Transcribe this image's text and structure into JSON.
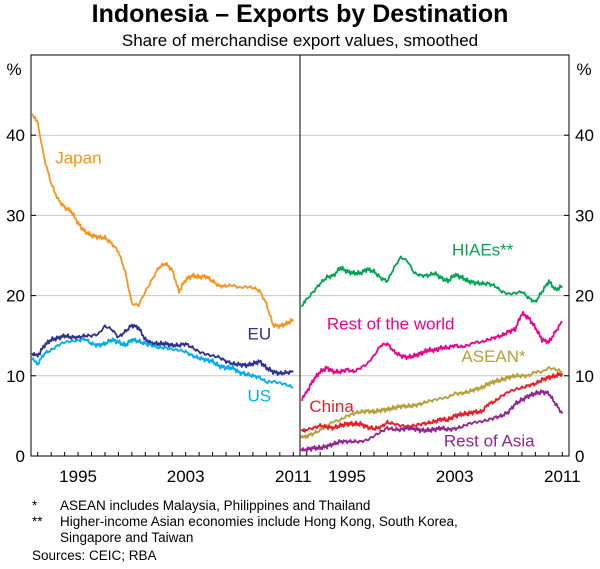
{
  "chart_data": {
    "type": "line",
    "title": "Indonesia – Exports by Destination",
    "subtitle": "Share of merchandise export values, smoothed",
    "ylabel": "%",
    "ylim": [
      0,
      50
    ],
    "yticks": [
      0,
      10,
      20,
      30,
      40
    ],
    "xlim": [
      1991.5,
      2011.5
    ],
    "xticks": [
      1995,
      2003,
      2011
    ],
    "grid": "horizontal",
    "panels": [
      {
        "name": "left",
        "series": [
          {
            "name": "Japan",
            "color": "#f7941d",
            "x": [
              1991.6,
              1992.0,
              1992.5,
              1993.0,
              1993.5,
              1994.0,
              1994.5,
              1995.0,
              1995.5,
              1996.0,
              1996.5,
              1997.0,
              1997.5,
              1998.0,
              1998.5,
              1999.0,
              1999.5,
              2000.0,
              2000.5,
              2001.0,
              2001.5,
              2002.0,
              2002.5,
              2003.0,
              2003.5,
              2004.0,
              2004.5,
              2005.0,
              2005.5,
              2006.0,
              2006.5,
              2007.0,
              2007.5,
              2008.0,
              2008.5,
              2009.0,
              2009.5,
              2010.0,
              2010.5,
              2011.0
            ],
            "y": [
              42.5,
              41.5,
              37,
              34,
              32,
              31,
              30.5,
              29,
              28,
              27.5,
              27.3,
              27.2,
              26.5,
              25.5,
              23,
              19,
              18.8,
              20.5,
              22,
              23.5,
              24,
              23.2,
              20.5,
              22,
              22.5,
              22.3,
              22.4,
              21.8,
              21.2,
              21.2,
              21.3,
              21,
              21.1,
              21,
              20.6,
              19,
              16.3,
              16.2,
              16.5,
              17
            ]
          },
          {
            "name": "EU",
            "color": "#2e3192",
            "x": [
              1991.6,
              1992.0,
              1992.5,
              1993.0,
              1993.5,
              1994.0,
              1994.5,
              1995.0,
              1995.5,
              1996.0,
              1996.5,
              1997.0,
              1997.5,
              1998.0,
              1998.5,
              1999.0,
              1999.5,
              2000.0,
              2000.5,
              2001.0,
              2001.5,
              2002.0,
              2002.5,
              2003.0,
              2003.5,
              2004.0,
              2004.5,
              2005.0,
              2005.5,
              2006.0,
              2006.5,
              2007.0,
              2007.5,
              2008.0,
              2008.5,
              2009.0,
              2009.5,
              2010.0,
              2010.5,
              2011.0
            ],
            "y": [
              12.8,
              12.5,
              13.8,
              14.5,
              14.7,
              15,
              14.8,
              14.8,
              15,
              15,
              15.2,
              16.2,
              15.8,
              14.8,
              15.5,
              16.3,
              16,
              14.5,
              14,
              14,
              14,
              13.8,
              13.8,
              14,
              13.5,
              13,
              12.7,
              12.5,
              12.3,
              11.8,
              11.5,
              11.4,
              11.3,
              11.5,
              11.8,
              11,
              10.5,
              10.3,
              10.4,
              10.5
            ]
          },
          {
            "name": "US",
            "color": "#00aeef",
            "x": [
              1991.6,
              1992.0,
              1992.5,
              1993.0,
              1993.5,
              1994.0,
              1994.5,
              1995.0,
              1995.5,
              1996.0,
              1996.5,
              1997.0,
              1997.5,
              1998.0,
              1998.5,
              1999.0,
              1999.5,
              2000.0,
              2000.5,
              2001.0,
              2001.5,
              2002.0,
              2002.5,
              2003.0,
              2003.5,
              2004.0,
              2004.5,
              2005.0,
              2005.5,
              2006.0,
              2006.5,
              2007.0,
              2007.5,
              2008.0,
              2008.5,
              2009.0,
              2009.5,
              2010.0,
              2010.5,
              2011.0
            ],
            "y": [
              12.3,
              11.5,
              12.8,
              13.2,
              13.8,
              14.2,
              14.3,
              14.4,
              14.6,
              14,
              13.8,
              14,
              14.5,
              14.2,
              13.8,
              14.5,
              14.3,
              14,
              13.8,
              13.5,
              13.5,
              13.3,
              13.2,
              13,
              12.5,
              12.2,
              12,
              11.8,
              11.2,
              11,
              11,
              10.4,
              10.2,
              10,
              9.8,
              9.2,
              9.3,
              9.1,
              8.9,
              8.5
            ]
          }
        ],
        "annotations": [
          {
            "text": "Japan",
            "x": 1993.3,
            "y": 36.5,
            "color": "#f7941d"
          },
          {
            "text": "EU",
            "x": 2007.6,
            "y": 14.5,
            "color": "#2e3192"
          },
          {
            "text": "US",
            "x": 2007.6,
            "y": 6.8,
            "color": "#00aeef"
          }
        ]
      },
      {
        "name": "right",
        "series": [
          {
            "name": "HIAEs**",
            "color": "#00a651",
            "x": [
              1991.6,
              1992.0,
              1992.5,
              1993.0,
              1993.5,
              1994.0,
              1994.5,
              1995.0,
              1995.5,
              1996.0,
              1996.5,
              1997.0,
              1997.5,
              1998.0,
              1998.5,
              1999.0,
              1999.5,
              2000.0,
              2000.5,
              2001.0,
              2001.5,
              2002.0,
              2002.5,
              2003.0,
              2003.5,
              2004.0,
              2004.5,
              2005.0,
              2005.5,
              2006.0,
              2006.5,
              2007.0,
              2007.5,
              2008.0,
              2008.5,
              2009.0,
              2009.5,
              2010.0,
              2010.5,
              2011.0
            ],
            "y": [
              18.5,
              19.5,
              20.5,
              21.5,
              22.3,
              22.5,
              23.5,
              23,
              22.8,
              22.8,
              23.3,
              23,
              22.2,
              21.8,
              23.5,
              24.8,
              24.3,
              22.8,
              22.5,
              22.5,
              22.8,
              22.2,
              21.8,
              22.6,
              22.3,
              21.8,
              21.6,
              21.5,
              21.5,
              21.2,
              20.5,
              20.2,
              20.3,
              20.5,
              19.7,
              19.2,
              20.5,
              21.8,
              20.7,
              21.2
            ]
          },
          {
            "name": "Rest of the world",
            "color": "#ec008c",
            "x": [
              1991.6,
              1992.0,
              1992.5,
              1993.0,
              1993.5,
              1994.0,
              1994.5,
              1995.0,
              1995.5,
              1996.0,
              1996.5,
              1997.0,
              1997.5,
              1998.0,
              1998.5,
              1999.0,
              1999.5,
              2000.0,
              2000.5,
              2001.0,
              2001.5,
              2002.0,
              2002.5,
              2003.0,
              2003.5,
              2004.0,
              2004.5,
              2005.0,
              2005.5,
              2006.0,
              2006.5,
              2007.0,
              2007.5,
              2008.0,
              2008.5,
              2009.0,
              2009.5,
              2010.0,
              2010.5,
              2011.0
            ],
            "y": [
              7,
              8,
              9.5,
              10.5,
              11,
              10.5,
              10.5,
              10.8,
              10.5,
              11,
              11.5,
              12.5,
              13.8,
              14,
              13,
              12.5,
              12.3,
              12.5,
              12.8,
              13.2,
              13.2,
              13.5,
              13.5,
              13.8,
              13.6,
              13.8,
              14.2,
              14.2,
              14.5,
              14.8,
              15,
              15.5,
              15.8,
              17.8,
              17.2,
              16,
              14.5,
              14.2,
              15.5,
              16.8
            ]
          },
          {
            "name": "ASEAN*",
            "color": "#b5a03c",
            "x": [
              1991.6,
              1992.0,
              1992.5,
              1993.0,
              1993.5,
              1994.0,
              1994.5,
              1995.0,
              1995.5,
              1996.0,
              1996.5,
              1997.0,
              1997.5,
              1998.0,
              1998.5,
              1999.0,
              1999.5,
              2000.0,
              2000.5,
              2001.0,
              2001.5,
              2002.0,
              2002.5,
              2003.0,
              2003.5,
              2004.0,
              2004.5,
              2005.0,
              2005.5,
              2006.0,
              2006.5,
              2007.0,
              2007.5,
              2008.0,
              2008.5,
              2009.0,
              2009.5,
              2010.0,
              2010.5,
              2011.0
            ],
            "y": [
              2.5,
              2.5,
              2.8,
              3.2,
              3.8,
              4.3,
              4.5,
              5,
              5.3,
              5.5,
              5.6,
              5.5,
              5.7,
              5.8,
              6,
              6.2,
              6.2,
              6.3,
              6.5,
              6.8,
              7,
              7.2,
              7.3,
              7.8,
              7.8,
              8,
              8.3,
              8.5,
              9,
              9.3,
              9.5,
              9.8,
              10,
              10,
              10,
              10.5,
              10.5,
              11,
              10.8,
              10.5
            ]
          },
          {
            "name": "China",
            "color": "#ed1c24",
            "x": [
              1991.6,
              1992.0,
              1992.5,
              1993.0,
              1993.5,
              1994.0,
              1994.5,
              1995.0,
              1995.5,
              1996.0,
              1996.5,
              1997.0,
              1997.5,
              1998.0,
              1998.5,
              1999.0,
              1999.5,
              2000.0,
              2000.5,
              2001.0,
              2001.5,
              2002.0,
              2002.5,
              2003.0,
              2003.5,
              2004.0,
              2004.5,
              2005.0,
              2005.5,
              2006.0,
              2006.5,
              2007.0,
              2007.5,
              2008.0,
              2008.5,
              2009.0,
              2009.5,
              2010.0,
              2010.5,
              2011.0
            ],
            "y": [
              3.3,
              3.3,
              3.5,
              3.8,
              3.6,
              3.5,
              3.8,
              4,
              4,
              4,
              3.6,
              3.4,
              3.6,
              4.2,
              4,
              3.8,
              3.7,
              3.8,
              4,
              4.1,
              4.3,
              4.6,
              4.5,
              5,
              5.2,
              5.3,
              5.5,
              5.5,
              6.5,
              6.8,
              7.5,
              8,
              8.3,
              8.5,
              8.8,
              9,
              9.5,
              9.8,
              10,
              10.3
            ]
          },
          {
            "name": "Rest of Asia",
            "color": "#92278f",
            "x": [
              1991.6,
              1992.0,
              1992.5,
              1993.0,
              1993.5,
              1994.0,
              1994.5,
              1995.0,
              1995.5,
              1996.0,
              1996.5,
              1997.0,
              1997.5,
              1998.0,
              1998.5,
              1999.0,
              1999.5,
              2000.0,
              2000.5,
              2001.0,
              2001.5,
              2002.0,
              2002.5,
              2003.0,
              2003.5,
              2004.0,
              2004.5,
              2005.0,
              2005.5,
              2006.0,
              2006.5,
              2007.0,
              2007.5,
              2008.0,
              2008.5,
              2009.0,
              2009.5,
              2010.0,
              2010.5,
              2011.0
            ],
            "y": [
              0.8,
              0.8,
              1,
              1,
              1.2,
              1.5,
              1.8,
              1.8,
              1.8,
              1.8,
              2,
              2.5,
              3,
              3.5,
              3.3,
              3.3,
              3.5,
              3.4,
              3.2,
              3.2,
              3.3,
              3.5,
              3.3,
              3.4,
              3.6,
              4,
              4.2,
              4.3,
              4.5,
              4.8,
              5,
              5.5,
              6.5,
              7,
              7.5,
              7.8,
              8,
              7.8,
              6.5,
              5.3
            ]
          }
        ],
        "annotations": [
          {
            "text": "HIAEs**",
            "x": 2002.8,
            "y": 25,
            "color": "#00a651"
          },
          {
            "text": "Rest of the world",
            "x": 1993.5,
            "y": 15.8,
            "color": "#ec008c"
          },
          {
            "text": "ASEAN*",
            "x": 2003.5,
            "y": 11.7,
            "color": "#b5a03c"
          },
          {
            "text": "China",
            "x": 1992.2,
            "y": 5.5,
            "color": "#ed1c24"
          },
          {
            "text": "Rest of Asia",
            "x": 2002.2,
            "y": 1.2,
            "color": "#92278f"
          }
        ]
      }
    ]
  },
  "footnotes": [
    {
      "mark": "*",
      "text": "ASEAN includes Malaysia, Philippines and Thailand"
    },
    {
      "mark": "**",
      "text": "Higher-income Asian economies include Hong Kong, South Korea,"
    },
    {
      "mark": "",
      "text": "Singapore and Taiwan"
    }
  ],
  "sources": "Sources: CEIC; RBA"
}
